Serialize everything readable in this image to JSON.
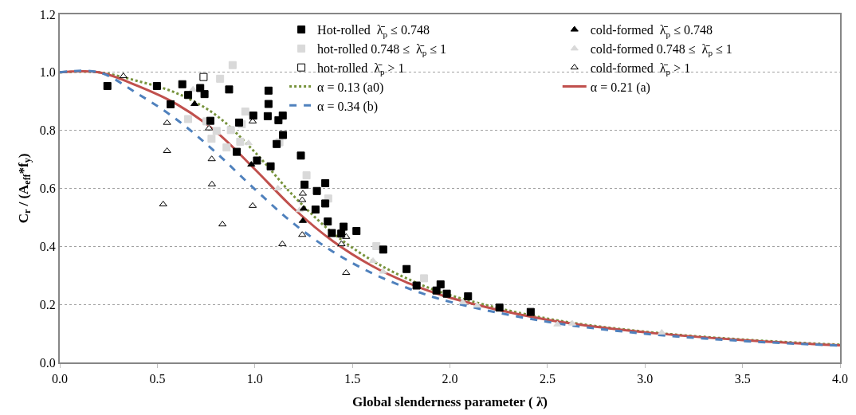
{
  "chart_data": {
    "type": "scatter",
    "xlabel": "Global slenderness parameter ( λ̄)",
    "ylabel": "C$_{r}$ / (A$_{eff}$*f$_{y}$)",
    "xlim": [
      0,
      4
    ],
    "ylim": [
      0,
      1.2
    ],
    "xticks": [
      {
        "value": 0,
        "label": "0.0"
      },
      {
        "value": 0.5,
        "label": "0.5"
      },
      {
        "value": 1,
        "label": "1.0"
      },
      {
        "value": 1.5,
        "label": "1.5"
      },
      {
        "value": 2,
        "label": "2.0"
      },
      {
        "value": 2.5,
        "label": "2.5"
      },
      {
        "value": 3,
        "label": "3.0"
      },
      {
        "value": 3.5,
        "label": "3.5"
      },
      {
        "value": 4,
        "label": "4.0"
      }
    ],
    "yticks": [
      {
        "value": 0,
        "label": "0.0"
      },
      {
        "value": 0.2,
        "label": "0.2"
      },
      {
        "value": 0.4,
        "label": "0.4"
      },
      {
        "value": 0.6,
        "label": "0.6"
      },
      {
        "value": 0.8,
        "label": "0.8"
      },
      {
        "value": 1,
        "label": "1.0"
      },
      {
        "value": 1.2,
        "label": "1.2"
      }
    ],
    "grid": "y",
    "legend": "top right",
    "series": [
      {
        "name": "Hot-rolled  λ̄$_{p}$ ≤ 0.748",
        "marker": "square",
        "color": "#000000",
        "x": [
          0.244,
          0.498,
          0.628,
          0.658,
          0.72,
          0.742,
          0.568,
          0.772,
          0.868,
          0.919,
          0.992,
          1.07,
          1.07,
          1.066,
          1.143,
          1.121,
          1.144,
          1.112,
          0.907,
          1.011,
          1.081,
          1.236,
          1.255,
          1.318,
          1.361,
          1.361,
          1.311,
          1.374,
          1.395,
          1.443,
          1.455,
          1.521,
          1.658,
          1.778,
          1.829,
          1.931,
          1.952,
          1.984,
          2.093,
          2.254,
          2.414
        ],
        "values": [
          0.953,
          0.953,
          0.959,
          0.922,
          0.946,
          0.925,
          0.89,
          0.833,
          0.941,
          0.827,
          0.851,
          0.937,
          0.891,
          0.849,
          0.851,
          0.835,
          0.784,
          0.753,
          0.726,
          0.696,
          0.676,
          0.713,
          0.613,
          0.591,
          0.618,
          0.548,
          0.527,
          0.486,
          0.446,
          0.444,
          0.468,
          0.453,
          0.389,
          0.322,
          0.265,
          0.248,
          0.269,
          0.237,
          0.228,
          0.189,
          0.174
        ]
      },
      {
        "name": "cold-formed  λ̄$_{p}$ ≤ 0.748",
        "marker": "triangle",
        "color": "#000000",
        "x": [
          0.691,
          0.982,
          1.246,
          1.25
        ],
        "values": [
          0.891,
          0.682,
          0.488,
          0.53
        ]
      },
      {
        "name": "hot-rolled 0.748 ≤  λ̄$_{p}$ ≤ 1",
        "marker": "square",
        "color": "#d9d9d9",
        "x": [
          0.886,
          0.822,
          0.951,
          0.658,
          0.752,
          0.804,
          0.877,
          0.933,
          0.778,
          0.925,
          0.855,
          1.126,
          1.265,
          1.376,
          1.623,
          1.867
        ],
        "values": [
          1.025,
          0.978,
          0.865,
          0.839,
          0.831,
          0.798,
          0.801,
          0.821,
          0.771,
          0.761,
          0.741,
          0.759,
          0.645,
          0.565,
          0.401,
          0.29
        ]
      },
      {
        "name": "cold-formed 0.748 ≤  λ̄$_{p}$ ≤ 1",
        "marker": "triangle",
        "color": "#d9d9d9",
        "x": [
          0.683,
          0.968,
          1.118,
          1.229,
          1.606,
          1.657,
          2.066,
          2.14,
          2.551,
          2.627,
          3.086
        ],
        "values": [
          0.941,
          0.756,
          0.6,
          0.525,
          0.35,
          0.313,
          0.208,
          0.196,
          0.131,
          0.134,
          0.103
        ]
      },
      {
        "name": "hot-rolled  λ̄$_{p}$ > 1",
        "marker": "square",
        "color": "#ffffff",
        "x": [
          0.737
        ],
        "values": [
          0.984
        ]
      },
      {
        "name": "cold-formed  λ̄$_{p}$ > 1",
        "marker": "triangle",
        "color": "#ffffff",
        "x": [
          0.326,
          0.55,
          0.55,
          0.53,
          0.765,
          0.779,
          0.78,
          0.834,
          0.989,
          0.989,
          1.141,
          1.246,
          1.243,
          1.243,
          1.468,
          1.444,
          1.468
        ],
        "values": [
          0.987,
          0.826,
          0.729,
          0.545,
          0.807,
          0.701,
          0.614,
          0.476,
          0.831,
          0.54,
          0.408,
          0.582,
          0.56,
          0.44,
          0.433,
          0.408,
          0.309
        ]
      },
      {
        "name": "α = 0.13 (a0)",
        "type": "line",
        "marker": "none",
        "line_style": "dotted",
        "color": "#77933c",
        "x": [
          0,
          0.2,
          0.4,
          0.6,
          0.8,
          1.0,
          1.2,
          1.4,
          1.6,
          1.8,
          2.0,
          2.5,
          3.0,
          3.5,
          4.0
        ],
        "values": [
          1.0,
          1.0,
          0.97,
          0.928,
          0.853,
          0.725,
          0.573,
          0.446,
          0.352,
          0.283,
          0.232,
          0.151,
          0.106,
          0.079,
          0.061
        ]
      },
      {
        "name": "α = 0.21 (a)",
        "type": "line",
        "marker": "none",
        "line_style": "solid",
        "color": "#c0504d",
        "x": [
          0,
          0.2,
          0.4,
          0.6,
          0.8,
          1.0,
          1.2,
          1.4,
          1.6,
          1.8,
          2.0,
          2.5,
          3.0,
          3.5,
          4.0
        ],
        "values": [
          1.0,
          1.0,
          0.953,
          0.89,
          0.796,
          0.666,
          0.53,
          0.418,
          0.333,
          0.27,
          0.223,
          0.147,
          0.104,
          0.077,
          0.059
        ]
      },
      {
        "name": "α = 0.34 (b)",
        "type": "line",
        "marker": "none",
        "line_style": "dashed",
        "color": "#4f81bd",
        "x": [
          0,
          0.2,
          0.4,
          0.6,
          0.8,
          1.0,
          1.2,
          1.4,
          1.6,
          1.8,
          2.0,
          2.5,
          3.0,
          3.5,
          4.0
        ],
        "values": [
          1.0,
          1.0,
          0.926,
          0.837,
          0.724,
          0.597,
          0.478,
          0.382,
          0.308,
          0.252,
          0.209,
          0.14,
          0.099,
          0.074,
          0.058
        ]
      }
    ]
  }
}
